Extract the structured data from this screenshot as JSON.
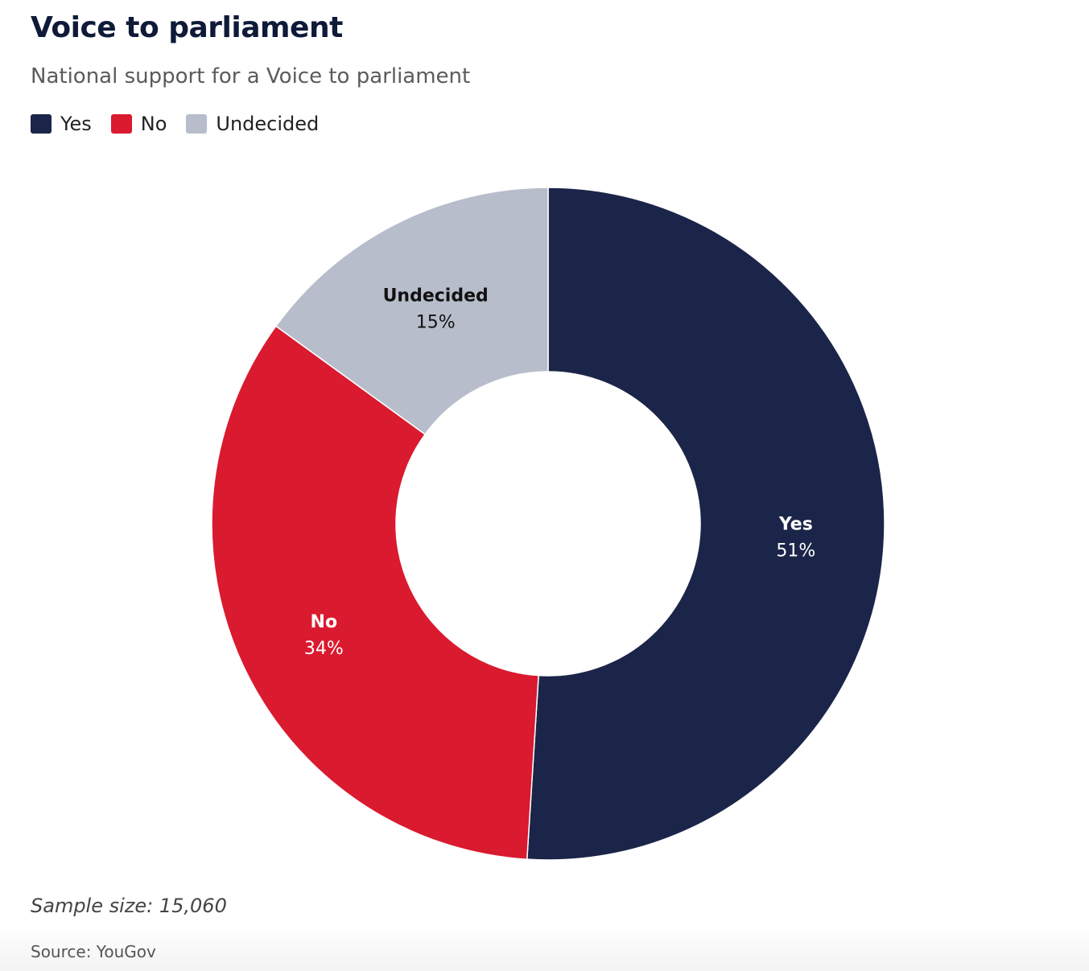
{
  "header": {
    "title": "Voice to parliament",
    "subtitle": "National support for a Voice to parliament"
  },
  "legend": [
    {
      "label": "Yes",
      "color": "#1b2549"
    },
    {
      "label": "No",
      "color": "#da1a2f"
    },
    {
      "label": "Undecided",
      "color": "#b8bdcb"
    }
  ],
  "chart_data": {
    "type": "pie",
    "donut": true,
    "categories": [
      "Yes",
      "No",
      "Undecided"
    ],
    "values": [
      51,
      34,
      15
    ],
    "value_labels": [
      "51%",
      "34%",
      "15%"
    ],
    "colors": [
      "#1b2549",
      "#da1a2f",
      "#b8bdcb"
    ],
    "label_colors": [
      "#ffffff",
      "#ffffff",
      "#111111"
    ],
    "start": "12 o'clock",
    "direction": "clockwise",
    "legend_position": "top-left"
  },
  "footer": {
    "note": "Sample size: 15,060",
    "source": "Source: YouGov"
  }
}
